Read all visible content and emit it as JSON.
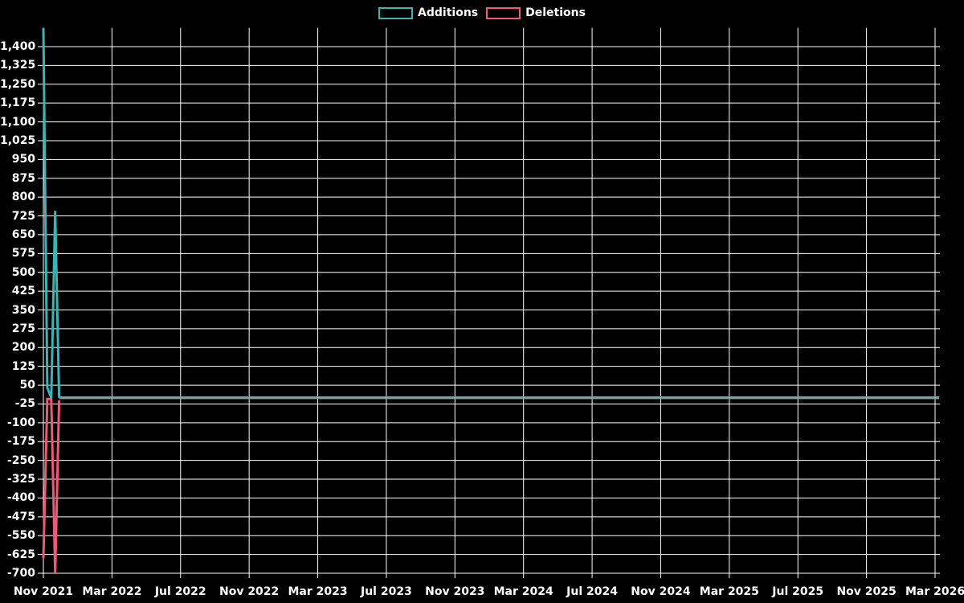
{
  "legend": {
    "additions": {
      "label": "Additions",
      "color": "#39b4b7"
    },
    "deletions": {
      "label": "Deletions",
      "color": "#f05878"
    }
  },
  "colors": {
    "background": "#000000",
    "grid": "#ffffff",
    "text": "#ffffff",
    "additions": "#39b4b7",
    "deletions": "#f05878",
    "flat_overlap": "#7ea0a5"
  },
  "y_axis": {
    "tick_labels": [
      "1,400",
      "1,325",
      "1,250",
      "1,175",
      "1,100",
      "1,025",
      "950",
      "875",
      "800",
      "725",
      "650",
      "575",
      "500",
      "425",
      "350",
      "275",
      "200",
      "125",
      "50",
      "-25",
      "-100",
      "-175",
      "-250",
      "-325",
      "-400",
      "-475",
      "-550",
      "-625",
      "-700"
    ],
    "tick_values": [
      1400,
      1325,
      1250,
      1175,
      1100,
      1025,
      950,
      875,
      800,
      725,
      650,
      575,
      500,
      425,
      350,
      275,
      200,
      125,
      50,
      -25,
      -100,
      -175,
      -250,
      -325,
      -400,
      -475,
      -550,
      -625,
      -700
    ]
  },
  "x_axis": {
    "tick_labels": [
      "Nov 2021",
      "Mar 2022",
      "Jul 2022",
      "Nov 2022",
      "Mar 2023",
      "Jul 2023",
      "Nov 2023",
      "Mar 2024",
      "Jul 2024",
      "Nov 2024",
      "Mar 2025",
      "Jul 2025",
      "Nov 2025",
      "Mar 2026"
    ]
  },
  "chart_data": {
    "type": "line",
    "title": "",
    "xlabel": "",
    "ylabel": "",
    "x_unit": "weekly",
    "x_range": [
      "Nov 2021",
      "Mar 2026"
    ],
    "ylim": [
      -700,
      1475
    ],
    "y_tick_step": 75,
    "grid": true,
    "legend_position": "top-center",
    "series": [
      {
        "name": "Additions",
        "color": "#39b4b7",
        "initial_weekly_values": [
          1475,
          40,
          0,
          745,
          0
        ],
        "remaining_value": 0,
        "note": "spike clipped at top of plot (~1,475) in first week of Nov 2021; second spike ~745; flat at 0 afterwards through Mar 2026"
      },
      {
        "name": "Deletions",
        "color": "#f05878",
        "initial_weekly_values": [
          -640,
          -5,
          -5,
          -700,
          -10
        ],
        "remaining_value": 0,
        "note": "down-spikes ~-640 and ~-700 in Nov 2021; flat at 0 afterwards, overlapping Additions line (muted gray-teal)"
      }
    ]
  }
}
